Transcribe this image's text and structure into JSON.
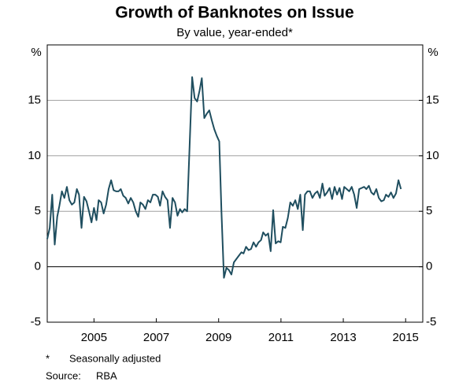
{
  "chart_data": {
    "type": "line",
    "title": "Growth of Banknotes on Issue",
    "subtitle": "By value, year-ended*",
    "y_unit": "%",
    "y2_unit": "%",
    "x": [
      2003.5,
      2003.58,
      2003.66,
      2003.74,
      2003.82,
      2003.89,
      2003.97,
      2004.05,
      2004.13,
      2004.21,
      2004.29,
      2004.37,
      2004.45,
      2004.52,
      2004.6,
      2004.68,
      2004.76,
      2004.84,
      2004.92,
      2005.0,
      2005.08,
      2005.15,
      2005.23,
      2005.31,
      2005.39,
      2005.47,
      2005.55,
      2005.63,
      2005.71,
      2005.79,
      2005.86,
      2005.94,
      2006.02,
      2006.1,
      2006.18,
      2006.26,
      2006.34,
      2006.42,
      2006.49,
      2006.57,
      2006.65,
      2006.73,
      2006.81,
      2006.89,
      2006.97,
      2007.05,
      2007.12,
      2007.2,
      2007.28,
      2007.36,
      2007.44,
      2007.52,
      2007.6,
      2007.68,
      2007.76,
      2007.83,
      2007.91,
      2007.99,
      2008.07,
      2008.15,
      2008.23,
      2008.31,
      2008.39,
      2008.46,
      2008.54,
      2008.62,
      2008.7,
      2008.78,
      2008.86,
      2008.94,
      2009.02,
      2009.09,
      2009.17,
      2009.25,
      2009.33,
      2009.41,
      2009.49,
      2009.57,
      2009.65,
      2009.73,
      2009.8,
      2009.88,
      2009.96,
      2010.04,
      2010.12,
      2010.2,
      2010.28,
      2010.36,
      2010.43,
      2010.51,
      2010.59,
      2010.67,
      2010.75,
      2010.83,
      2010.91,
      2010.99,
      2011.06,
      2011.14,
      2011.22,
      2011.3,
      2011.38,
      2011.46,
      2011.54,
      2011.62,
      2011.7,
      2011.77,
      2011.85,
      2011.93,
      2012.01,
      2012.09,
      2012.17,
      2012.25,
      2012.33,
      2012.4,
      2012.48,
      2012.56,
      2012.64,
      2012.72,
      2012.8,
      2012.88,
      2012.96,
      2013.03,
      2013.11,
      2013.19,
      2013.27,
      2013.35,
      2013.43,
      2013.51,
      2013.59,
      2013.67,
      2013.74,
      2013.82,
      2013.9,
      2013.98,
      2014.06,
      2014.14,
      2014.22,
      2014.3,
      2014.37,
      2014.45,
      2014.53,
      2014.61,
      2014.69,
      2014.77,
      2014.85
    ],
    "series": [
      {
        "name": "Growth of banknotes",
        "color": "#1f4e5f",
        "values": [
          2.5,
          3.5,
          6.5,
          2,
          4.5,
          5.5,
          6.8,
          6.2,
          7.2,
          6,
          5.6,
          5.8,
          7,
          6.5,
          3.5,
          6.3,
          5.9,
          5,
          4,
          5.3,
          4.2,
          6,
          5.8,
          4.8,
          5.6,
          7,
          7.8,
          6.9,
          6.8,
          6.8,
          7,
          6.4,
          6.2,
          5.7,
          6.2,
          5.8,
          5,
          4.5,
          5.8,
          5.6,
          5.2,
          6,
          5.8,
          6.5,
          6.5,
          6.3,
          5.5,
          6.8,
          6.3,
          6,
          3.5,
          6.2,
          5.8,
          4.6,
          5.2,
          4.9,
          5.2,
          5,
          11,
          17.1,
          15.2,
          14.9,
          15.9,
          17,
          13.4,
          13.8,
          14.1,
          13.2,
          12.4,
          11.8,
          11.3,
          5,
          -1,
          -0.1,
          -0.3,
          -0.7,
          0.4,
          0.7,
          1,
          1.3,
          1.2,
          1.8,
          1.5,
          1.6,
          2.2,
          1.8,
          2.2,
          2.4,
          3.1,
          2.8,
          3,
          1.4,
          5.1,
          2.1,
          2.3,
          2.2,
          3.6,
          3.5,
          4.4,
          5.8,
          5.5,
          6,
          5.2,
          6.5,
          3.3,
          6.5,
          6.8,
          6.8,
          6.2,
          6.6,
          6.8,
          6.2,
          7.5,
          6.4,
          6.7,
          7.1,
          6.1,
          7.2,
          6.5,
          7.1,
          6.1,
          7.2,
          7,
          6.8,
          7.2,
          6.5,
          5.3,
          7,
          7.1,
          7.2,
          7,
          7.3,
          6.7,
          6.5,
          7,
          6.2,
          5.9,
          6,
          6.5,
          6.3,
          6.7,
          6.2,
          6.6,
          7.8,
          7
        ]
      }
    ],
    "xlim": [
      2003.5,
      2015.55
    ],
    "xticks": [
      2005,
      2007,
      2009,
      2011,
      2013,
      2015
    ],
    "ylim": [
      -5,
      20
    ],
    "yticks": [
      -5,
      0,
      5,
      10,
      15
    ],
    "y2lim": [
      -5,
      20
    ],
    "y2ticks": [
      -5,
      0,
      5,
      10,
      15
    ],
    "grid": true,
    "note_marker": "*",
    "note": "Seasonally adjusted",
    "source_label": "Source:",
    "source": "RBA"
  }
}
